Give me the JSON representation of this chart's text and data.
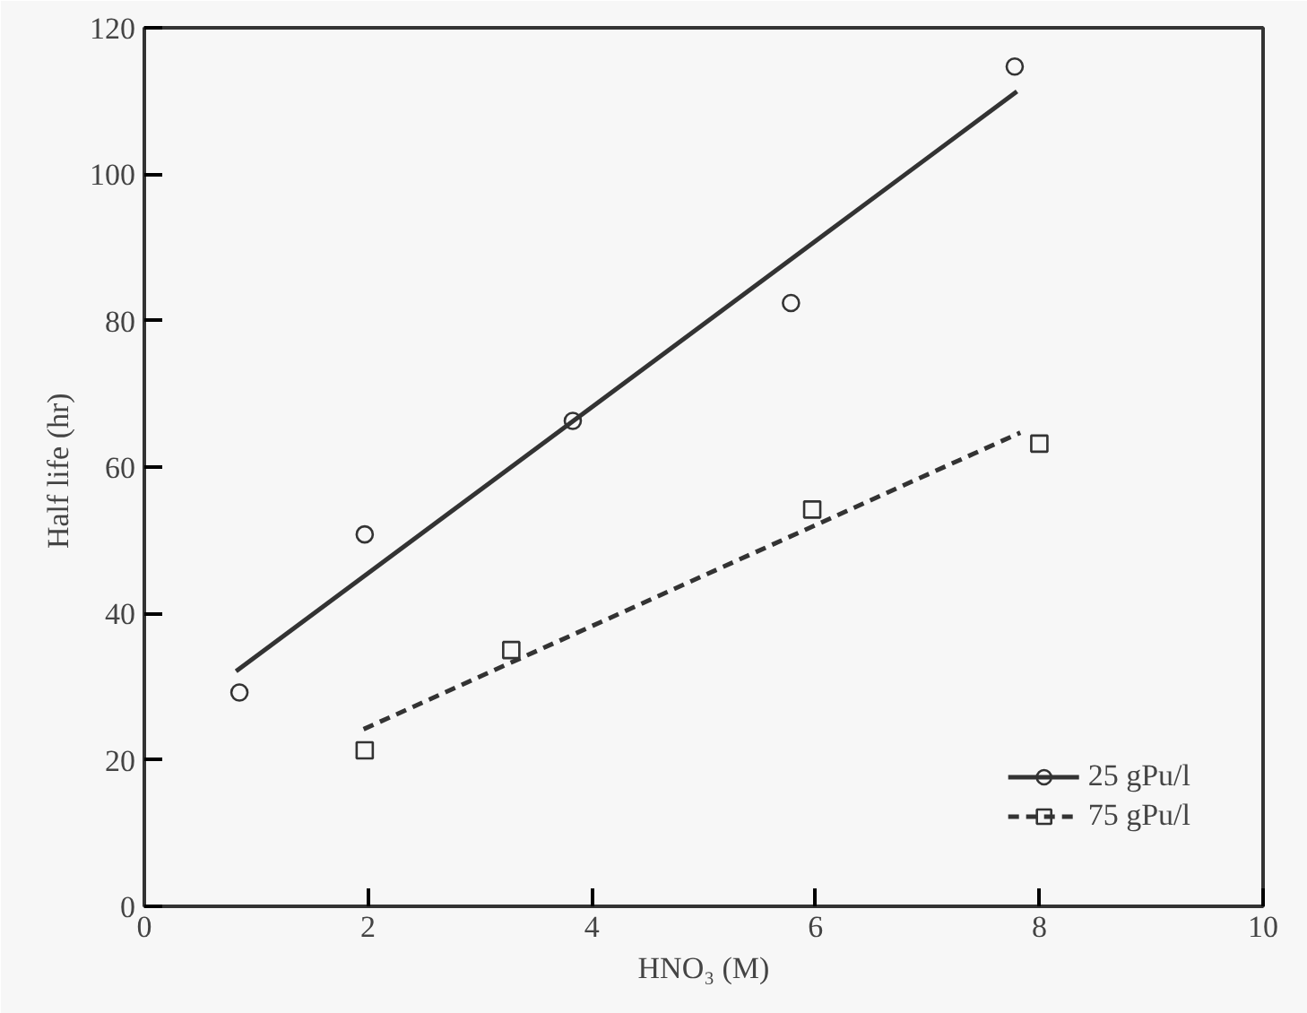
{
  "chart_data": {
    "type": "scatter",
    "xlabel": "HNO₃ (M)",
    "ylabel": "Half life  (hr)",
    "xlim": [
      0,
      10
    ],
    "ylim": [
      0,
      120
    ],
    "xticks": [
      0,
      2,
      4,
      6,
      8,
      10
    ],
    "yticks": [
      0,
      20,
      40,
      60,
      80,
      100,
      120
    ],
    "grid": false,
    "legend": "bottom right",
    "series": [
      {
        "name": "25 gPu/l",
        "marker": "circle",
        "color": "#333333",
        "x": [
          0.85,
          1.97,
          3.83,
          5.78,
          7.78
        ],
        "values": [
          29.2,
          50.8,
          66.3,
          82.4,
          114.7
        ]
      },
      {
        "type": "line",
        "line_style": "solid",
        "color": "#333333",
        "x": [
          0.82,
          7.8
        ],
        "values": [
          32.1,
          111.3
        ]
      },
      {
        "name": "75 gPu/l",
        "marker": "square",
        "color": "#333333",
        "x": [
          1.97,
          3.28,
          5.97,
          8.0
        ],
        "values": [
          21.3,
          35.0,
          54.2,
          63.2
        ]
      },
      {
        "type": "line",
        "line_style": "dashed",
        "color": "#333333",
        "x": [
          1.96,
          7.83
        ],
        "values": [
          24.2,
          64.7
        ]
      }
    ]
  }
}
